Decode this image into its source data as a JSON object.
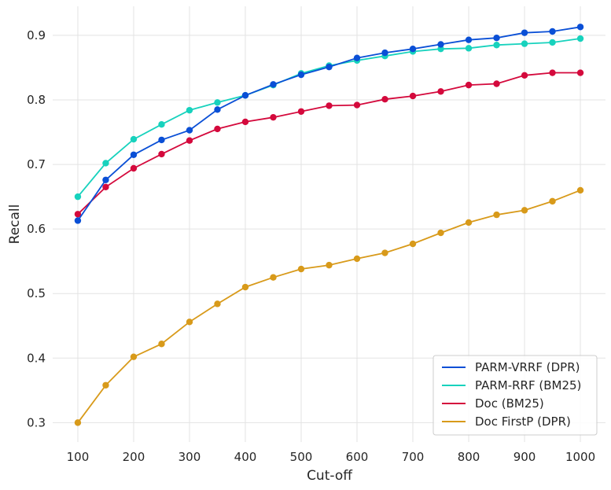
{
  "chart_data": {
    "type": "line",
    "title": "",
    "xlabel": "Cut-off",
    "ylabel": "Recall",
    "xlim": [
      55,
      1045
    ],
    "ylim": [
      0.27,
      0.945
    ],
    "xticks": [
      100,
      200,
      300,
      400,
      500,
      600,
      700,
      800,
      900,
      1000
    ],
    "yticks": [
      0.3,
      0.4,
      0.5,
      0.6,
      0.7,
      0.8,
      0.9
    ],
    "grid": true,
    "legend_position": "lower-right",
    "x": [
      100,
      150,
      200,
      250,
      300,
      350,
      400,
      450,
      500,
      550,
      600,
      650,
      700,
      750,
      800,
      850,
      900,
      950,
      1000
    ],
    "series": [
      {
        "name": "PARM-VRRF (DPR)",
        "color": "#0a4fd6",
        "values": [
          0.613,
          0.676,
          0.715,
          0.738,
          0.753,
          0.785,
          0.807,
          0.824,
          0.839,
          0.851,
          0.865,
          0.873,
          0.879,
          0.886,
          0.893,
          0.896,
          0.904,
          0.906,
          0.913
        ]
      },
      {
        "name": "PARM-RRF (BM25)",
        "color": "#17d2bd",
        "values": [
          0.65,
          0.702,
          0.739,
          0.762,
          0.784,
          0.796,
          0.807,
          0.823,
          0.841,
          0.853,
          0.861,
          0.868,
          0.875,
          0.879,
          0.88,
          0.885,
          0.887,
          0.889,
          0.895
        ]
      },
      {
        "name": "Doc (BM25)",
        "color": "#d4093c",
        "values": [
          0.623,
          0.665,
          0.694,
          0.716,
          0.737,
          0.755,
          0.766,
          0.773,
          0.782,
          0.791,
          0.792,
          0.801,
          0.806,
          0.813,
          0.823,
          0.825,
          0.838,
          0.842,
          0.842
        ]
      },
      {
        "name": "Doc FirstP (DPR)",
        "color": "#d89a1a",
        "values": [
          0.3,
          0.358,
          0.402,
          0.422,
          0.456,
          0.484,
          0.51,
          0.525,
          0.538,
          0.544,
          0.554,
          0.563,
          0.577,
          0.594,
          0.61,
          0.622,
          0.629,
          0.643,
          0.66
        ]
      }
    ]
  }
}
